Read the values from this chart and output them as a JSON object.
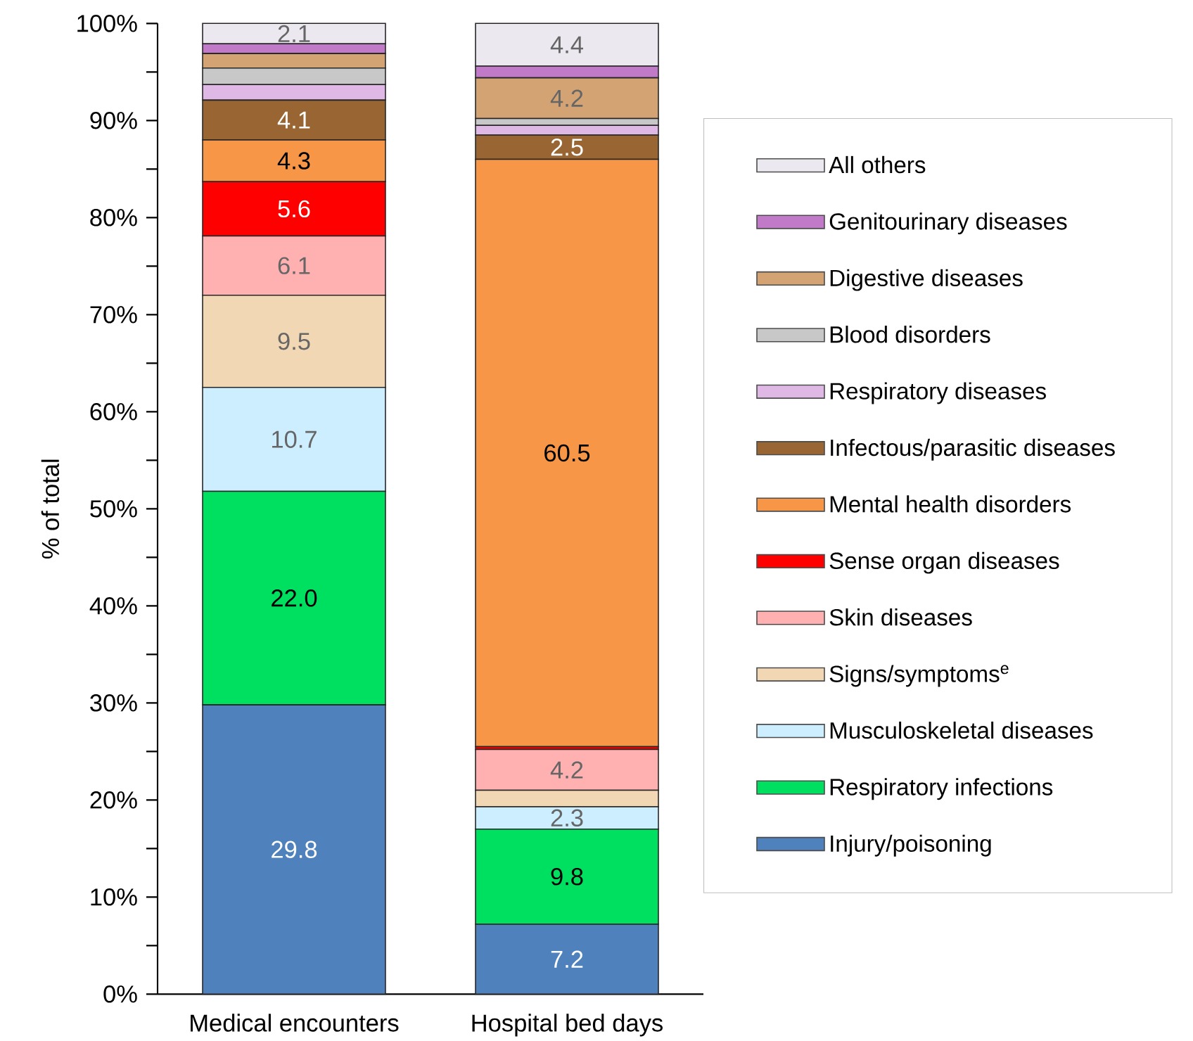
{
  "chart_data": {
    "type": "bar",
    "stacked": true,
    "ylabel": "% of total",
    "categories": [
      "Medical encounters",
      "Hospital bed days"
    ],
    "series": [
      {
        "name": "Injury/poisoning",
        "color": "#4f81bd",
        "values": [
          29.8,
          7.2
        ],
        "value_labels": [
          "29.8",
          "7.2"
        ]
      },
      {
        "name": "Respiratory infections",
        "color": "#00e060",
        "values": [
          22.0,
          9.8
        ],
        "value_labels": [
          "22.0",
          "9.8"
        ]
      },
      {
        "name": "Musculoskeletal diseases",
        "color": "#cceeff",
        "values": [
          10.7,
          2.3
        ],
        "value_labels": [
          "10.7",
          "2.3"
        ]
      },
      {
        "name": "Signs/symptoms$^{e}$",
        "color": "#f2d7b5",
        "values": [
          9.5,
          1.7
        ],
        "value_labels": [
          "9.5",
          null
        ]
      },
      {
        "name": "Skin diseases",
        "color": "#ffb0b0",
        "values": [
          6.1,
          4.2
        ],
        "value_labels": [
          "6.1",
          "4.2"
        ]
      },
      {
        "name": "Sense organ diseases",
        "color": "#ff0000",
        "values": [
          5.6,
          0.3
        ],
        "value_labels": [
          "5.6",
          null
        ]
      },
      {
        "name": "Mental health disorders",
        "color": "#f79646",
        "values": [
          4.3,
          60.5
        ],
        "value_labels": [
          "4.3",
          "60.5"
        ]
      },
      {
        "name": "Infectous/parasitic diseases",
        "color": "#996633",
        "values": [
          4.1,
          2.5
        ],
        "value_labels": [
          "4.1",
          "2.5"
        ]
      },
      {
        "name": "Respiratory diseases",
        "color": "#e0b8e6",
        "values": [
          1.6,
          1.0
        ],
        "value_labels": [
          null,
          null
        ]
      },
      {
        "name": "Blood disorders",
        "color": "#c8c8c8",
        "values": [
          1.7,
          0.7
        ],
        "value_labels": [
          null,
          null
        ]
      },
      {
        "name": "Digestive diseases",
        "color": "#d4a373",
        "values": [
          1.5,
          4.2
        ],
        "value_labels": [
          null,
          "4.2"
        ]
      },
      {
        "name": "Genitourinary diseases",
        "color": "#c07ac8",
        "values": [
          1.0,
          1.2
        ],
        "value_labels": [
          null,
          null
        ]
      },
      {
        "name": "All others",
        "color": "#ebe8f0",
        "values": [
          2.1,
          4.4
        ],
        "value_labels": [
          "2.1",
          "4.4"
        ]
      }
    ],
    "ylim": [
      0,
      100
    ],
    "yticks": [
      {
        "value": 0,
        "label": "0%"
      },
      {
        "value": 5,
        "label": null
      },
      {
        "value": 10,
        "label": "10%"
      },
      {
        "value": 15,
        "label": null
      },
      {
        "value": 20,
        "label": "20%"
      },
      {
        "value": 25,
        "label": null
      },
      {
        "value": 30,
        "label": "30%"
      },
      {
        "value": 35,
        "label": null
      },
      {
        "value": 40,
        "label": "40%"
      },
      {
        "value": 45,
        "label": null
      },
      {
        "value": 50,
        "label": "50%"
      },
      {
        "value": 55,
        "label": null
      },
      {
        "value": 60,
        "label": "60%"
      },
      {
        "value": 65,
        "label": null
      },
      {
        "value": 70,
        "label": "70%"
      },
      {
        "value": 75,
        "label": null
      },
      {
        "value": 80,
        "label": "80%"
      },
      {
        "value": 85,
        "label": null
      },
      {
        "value": 90,
        "label": "90%"
      },
      {
        "value": 95,
        "label": null
      },
      {
        "value": 100,
        "label": "100%"
      }
    ],
    "grid": false,
    "legend": "right"
  }
}
